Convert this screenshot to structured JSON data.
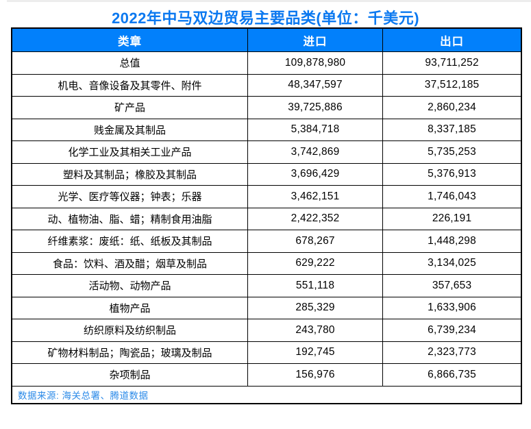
{
  "page": {
    "title": "2022年中马双边贸易主要品类(单位：千美元)"
  },
  "colors": {
    "header_background": "#0280fb",
    "header_text": "#ffffff",
    "title_text": "#0a78f0",
    "source_text": "#2b8ae8",
    "grid_border": "#000000"
  },
  "table": {
    "columns": [
      "类章",
      "进口",
      "出口"
    ],
    "rows": [
      {
        "category": "总值",
        "import": "109,878,980",
        "export": "93,711,252"
      },
      {
        "category": "机电、音像设备及其零件、附件",
        "import": "48,347,597",
        "export": "37,512,185"
      },
      {
        "category": "矿产品",
        "import": "39,725,886",
        "export": "2,860,234"
      },
      {
        "category": "贱金属及其制品",
        "import": "5,384,718",
        "export": "8,337,185"
      },
      {
        "category": "化学工业及其相关工业产品",
        "import": "3,742,869",
        "export": "5,735,253"
      },
      {
        "category": "塑料及其制品；橡胶及其制品",
        "import": "3,696,429",
        "export": "5,376,913"
      },
      {
        "category": "光学、医疗等仪器；钟表；乐器",
        "import": "3,462,151",
        "export": "1,746,043"
      },
      {
        "category": "动、植物油、脂、蜡；精制食用油脂",
        "import": "2,422,352",
        "export": "226,191"
      },
      {
        "category": "纤维素浆：废纸：纸、纸板及其制品",
        "import": "678,267",
        "export": "1,448,298"
      },
      {
        "category": "食品：饮料、酒及醋；烟草及制品",
        "import": "629,222",
        "export": "3,134,025"
      },
      {
        "category": "活动物、动物产品",
        "import": "551,118",
        "export": "357,653"
      },
      {
        "category": "植物产品",
        "import": "285,329",
        "export": "1,633,906"
      },
      {
        "category": "纺织原料及纺织制品",
        "import": "243,780",
        "export": "6,739,234"
      },
      {
        "category": "矿物材料制品；陶瓷品；玻璃及制品",
        "import": "192,745",
        "export": "2,323,773"
      },
      {
        "category": "杂项制品",
        "import": "156,976",
        "export": "6,866,735"
      }
    ],
    "source": "数据来源: 海关总署、腾道数据"
  },
  "chart_data": {
    "type": "table",
    "title": "2022年中马双边贸易主要品类(单位：千美元)",
    "unit": "千美元",
    "columns": [
      "类章",
      "进口",
      "出口"
    ],
    "rows": [
      [
        "总值",
        109878980,
        93711252
      ],
      [
        "机电、音像设备及其零件、附件",
        48347597,
        37512185
      ],
      [
        "矿产品",
        39725886,
        2860234
      ],
      [
        "贱金属及其制品",
        5384718,
        8337185
      ],
      [
        "化学工业及其相关工业产品",
        3742869,
        5735253
      ],
      [
        "塑料及其制品；橡胶及其制品",
        3696429,
        5376913
      ],
      [
        "光学、医疗等仪器；钟表；乐器",
        3462151,
        1746043
      ],
      [
        "动、植物油、脂、蜡；精制食用油脂",
        2422352,
        226191
      ],
      [
        "纤维素浆：废纸：纸、纸板及其制品",
        678267,
        1448298
      ],
      [
        "食品：饮料、酒及醋；烟草及制品",
        629222,
        3134025
      ],
      [
        "活动物、动物产品",
        551118,
        357653
      ],
      [
        "植物产品",
        285329,
        1633906
      ],
      [
        "纺织原料及纺织制品",
        243780,
        6739234
      ],
      [
        "矿物材料制品；陶瓷品；玻璃及制品",
        192745,
        2323773
      ],
      [
        "杂项制品",
        156976,
        6866735
      ]
    ],
    "source": "数据来源: 海关总署、腾道数据"
  }
}
